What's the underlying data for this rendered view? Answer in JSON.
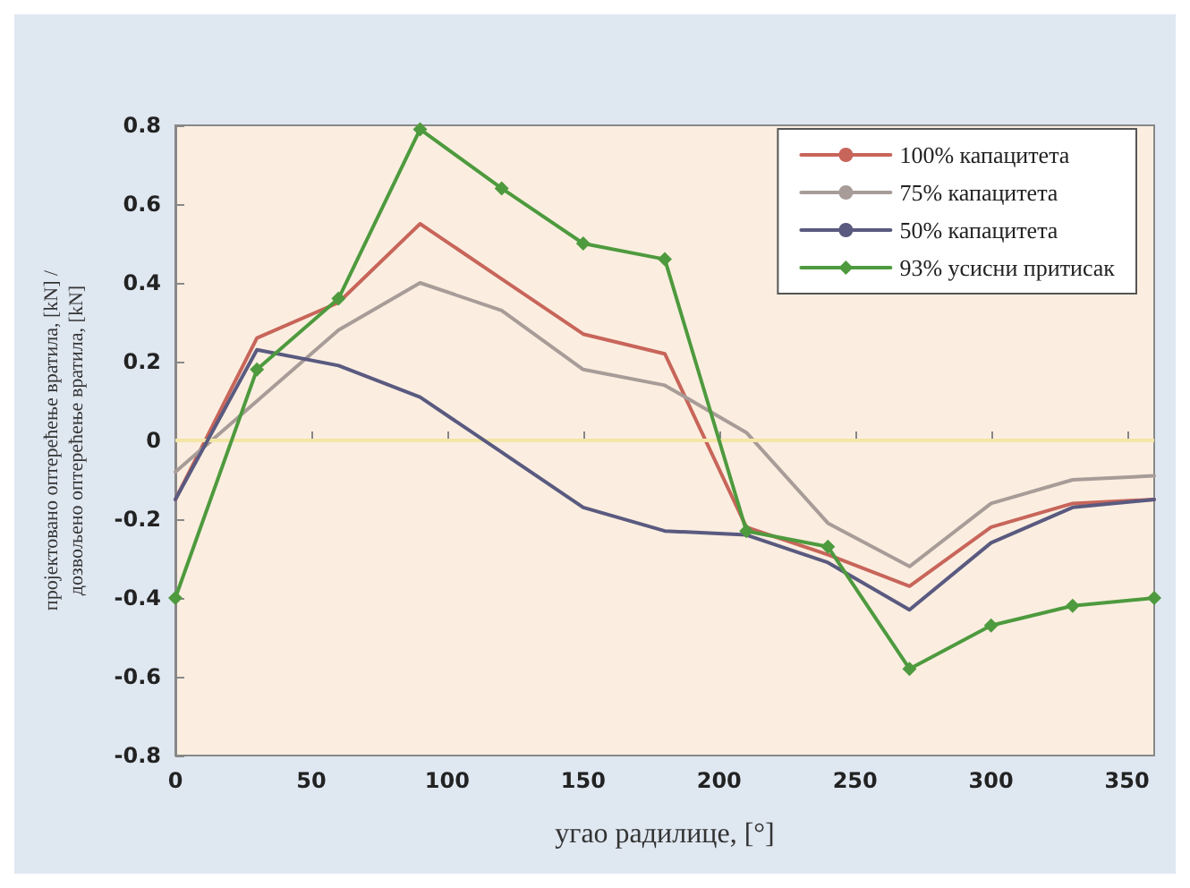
{
  "chart_data": {
    "type": "line",
    "xlabel": "угао радилице, [°]",
    "ylabel": "пројектовано оптерећење вратила, [kN] /\nдозвољено оптерећење вратила, [kN]",
    "x": [
      0,
      30,
      60,
      90,
      120,
      150,
      180,
      210,
      240,
      270,
      300,
      330,
      360
    ],
    "series": [
      {
        "name": "100% капацитета",
        "color": "#c8655a",
        "marker": "none",
        "values": [
          -0.15,
          0.26,
          0.35,
          0.55,
          0.41,
          0.27,
          0.22,
          -0.22,
          -0.29,
          -0.37,
          -0.22,
          -0.16,
          -0.15
        ]
      },
      {
        "name": "75% капацитета",
        "color": "#a89c98",
        "marker": "none",
        "values": [
          -0.08,
          0.1,
          0.28,
          0.4,
          0.33,
          0.18,
          0.14,
          0.02,
          -0.21,
          -0.32,
          -0.16,
          -0.1,
          -0.09
        ]
      },
      {
        "name": "50% капацитета",
        "color": "#5a5a80",
        "marker": "none",
        "values": [
          -0.15,
          0.23,
          0.19,
          0.11,
          -0.03,
          -0.17,
          -0.23,
          -0.24,
          -0.31,
          -0.43,
          -0.26,
          -0.17,
          -0.15
        ]
      },
      {
        "name": "93% усисни притисак",
        "color": "#4e9a3e",
        "marker": "diamond",
        "values": [
          -0.4,
          0.18,
          0.36,
          0.79,
          0.64,
          0.5,
          0.46,
          -0.23,
          -0.27,
          -0.58,
          -0.47,
          -0.42,
          -0.4
        ]
      }
    ],
    "xlim": [
      0,
      360
    ],
    "xticks": [
      0,
      50,
      100,
      150,
      200,
      250,
      300,
      350
    ],
    "ylim": [
      -0.8,
      0.8
    ],
    "yticks": [
      -0.8,
      -0.6,
      -0.4,
      -0.2,
      0,
      0.2,
      0.4,
      0.6,
      0.8
    ],
    "ref_lines": [
      {
        "axis": "y",
        "value": 0,
        "color": "#f3e6a6"
      }
    ],
    "grid": false,
    "legend": "top right",
    "line_style": "solid"
  }
}
